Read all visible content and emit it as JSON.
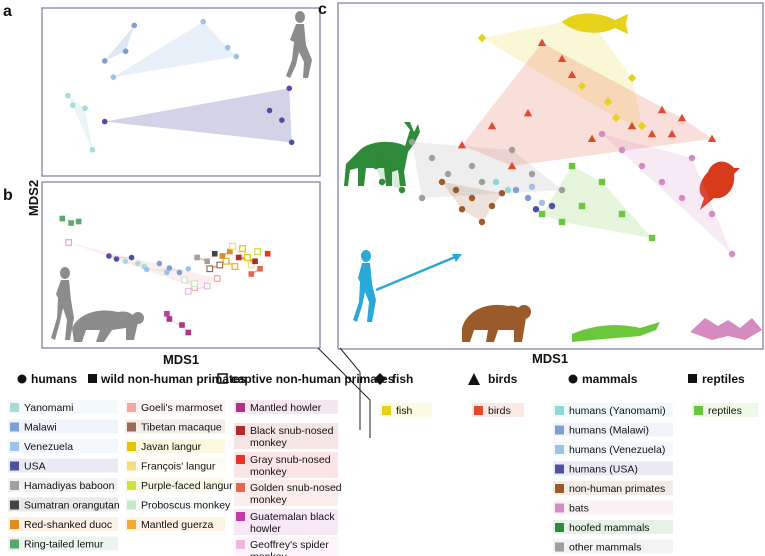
{
  "chart_data": [
    {
      "type": "scatter",
      "panel": "a",
      "title": "",
      "xlabel": "",
      "ylabel": "MDS2",
      "series": [
        {
          "name": "Yanomami",
          "color": "#a5dcd8",
          "points": [
            [
              -0.92,
              -0.05
            ],
            [
              -0.88,
              -0.18
            ],
            [
              -0.78,
              -0.22
            ],
            [
              -0.72,
              -0.78
            ]
          ]
        },
        {
          "name": "Malawi",
          "color": "#7d9fd4",
          "points": [
            [
              -0.38,
              0.9
            ],
            [
              -0.62,
              0.42
            ],
            [
              -0.45,
              0.55
            ]
          ]
        },
        {
          "name": "Venezuela",
          "color": "#9fc3e8",
          "points": [
            [
              -0.55,
              0.2
            ],
            [
              0.18,
              0.95
            ],
            [
              0.38,
              0.6
            ],
            [
              0.45,
              0.48
            ]
          ]
        },
        {
          "name": "USA",
          "color": "#4f4fa3",
          "points": [
            [
              -0.62,
              -0.4
            ],
            [
              0.72,
              -0.25
            ],
            [
              0.82,
              -0.38
            ],
            [
              0.88,
              0.05
            ],
            [
              0.9,
              -0.68
            ]
          ]
        }
      ]
    },
    {
      "type": "scatter",
      "panel": "b",
      "title": "",
      "xlabel": "MDS1",
      "ylabel": "MDS2",
      "series": [
        {
          "name": "Yanomami",
          "color": "#a5dcd8",
          "points": [
            [
              -0.45,
              0.05
            ],
            [
              -0.35,
              0.02
            ],
            [
              -0.3,
              -0.02
            ]
          ]
        },
        {
          "name": "Malawi",
          "color": "#7d9fd4",
          "points": [
            [
              -0.18,
              0.02
            ],
            [
              -0.1,
              -0.04
            ],
            [
              -0.02,
              -0.1
            ]
          ]
        },
        {
          "name": "Venezuela",
          "color": "#9fc3e8",
          "points": [
            [
              -0.28,
              -0.06
            ],
            [
              -0.12,
              -0.1
            ],
            [
              0.05,
              -0.05
            ]
          ]
        },
        {
          "name": "USA",
          "color": "#4f4fa3",
          "points": [
            [
              -0.58,
              0.12
            ],
            [
              -0.52,
              0.08
            ],
            [
              -0.4,
              0.1
            ]
          ]
        },
        {
          "name": "Hamadiyas baboon",
          "color": "#a6a09b",
          "points": [
            [
              0.12,
              0.1
            ],
            [
              0.2,
              0.05
            ]
          ]
        },
        {
          "name": "Sumatran orangutan",
          "color": "#444444",
          "points": [
            [
              0.26,
              0.15
            ]
          ]
        },
        {
          "name": "Red-shanked duoc",
          "color": "#e08a1f",
          "points": [
            [
              0.32,
              0.12
            ],
            [
              0.38,
              0.18
            ]
          ]
        },
        {
          "name": "Ring-tailed lemur",
          "color": "#5aa86a",
          "points": [
            [
              -0.95,
              0.62
            ],
            [
              -0.88,
              0.56
            ],
            [
              -0.82,
              0.58
            ]
          ]
        },
        {
          "name": "Goeli's marmoset",
          "color": "#f0a8a0",
          "points": [
            [
              -0.9,
              0.3
            ],
            [
              0.1,
              -0.3
            ],
            [
              0.28,
              -0.18
            ]
          ]
        },
        {
          "name": "Tibetan macaque",
          "color": "#9b6a55",
          "points": [
            [
              0.22,
              -0.05
            ],
            [
              0.3,
              0.0
            ]
          ]
        },
        {
          "name": "Javan langur",
          "color": "#e6c400",
          "points": [
            [
              0.48,
              0.22
            ],
            [
              0.52,
              0.1
            ]
          ]
        },
        {
          "name": "François' langur",
          "color": "#f3dc86",
          "points": [
            [
              0.4,
              0.25
            ],
            [
              0.55,
              0.0
            ]
          ]
        },
        {
          "name": "Purple-faced langur",
          "color": "#d2e03c",
          "points": [
            [
              0.6,
              0.18
            ]
          ]
        },
        {
          "name": "Proboscus monkey",
          "color": "#c8e8c8",
          "points": [
            [
              0.02,
              -0.2
            ],
            [
              0.1,
              -0.25
            ]
          ]
        },
        {
          "name": "Mantled guerza",
          "color": "#f0a830",
          "points": [
            [
              0.35,
              0.05
            ],
            [
              0.42,
              -0.02
            ]
          ]
        },
        {
          "name": "Mantled howler",
          "color": "#b0338a",
          "points": [
            [
              -0.1,
              -0.72
            ],
            [
              0.0,
              -0.8
            ],
            [
              0.05,
              -0.9
            ]
          ]
        },
        {
          "name": "Black snub-nosed monkey",
          "color": "#b22a2a",
          "points": [
            [
              0.45,
              0.1
            ],
            [
              0.58,
              0.05
            ]
          ]
        },
        {
          "name": "Gray snub-nosed monkey",
          "color": "#e8342a",
          "points": [
            [
              0.68,
              0.15
            ]
          ]
        },
        {
          "name": "Golden snub-nosed monkey",
          "color": "#e06a50",
          "points": [
            [
              0.55,
              -0.12
            ],
            [
              0.62,
              -0.05
            ]
          ]
        },
        {
          "name": "Guatemalan black howler",
          "color": "#c23ca8",
          "points": [
            [
              -0.12,
              -0.65
            ]
          ]
        },
        {
          "name": "Geoffrey's spider monkey",
          "color": "#f0b8e0",
          "points": [
            [
              0.05,
              -0.35
            ],
            [
              0.2,
              -0.28
            ]
          ]
        }
      ]
    },
    {
      "type": "scatter",
      "panel": "c",
      "title": "",
      "xlabel": "MDS1",
      "ylabel": "",
      "series": [
        {
          "name": "fish",
          "marker": "diamond",
          "color": "#e6d21a",
          "points": [
            [
              0.18,
              0.98
            ],
            [
              -0.35,
              0.85
            ],
            [
              0.4,
              0.6
            ],
            [
              0.28,
              0.45
            ],
            [
              0.32,
              0.35
            ],
            [
              0.45,
              0.3
            ],
            [
              0.15,
              0.55
            ]
          ]
        },
        {
          "name": "birds",
          "marker": "triangle",
          "color": "#e24a2c",
          "points": [
            [
              -0.05,
              0.82
            ],
            [
              0.05,
              0.72
            ],
            [
              0.1,
              0.62
            ],
            [
              -0.3,
              0.3
            ],
            [
              0.4,
              0.3
            ],
            [
              0.5,
              0.25
            ],
            [
              0.6,
              0.25
            ],
            [
              -0.12,
              0.38
            ],
            [
              0.2,
              0.22
            ],
            [
              -0.45,
              0.18
            ],
            [
              0.55,
              0.4
            ],
            [
              0.65,
              0.35
            ],
            [
              0.8,
              0.22
            ],
            [
              -0.2,
              0.05
            ]
          ]
        },
        {
          "name": "humans (Yanomami)",
          "marker": "circle",
          "color": "#8ed8d8",
          "points": [
            [
              -0.28,
              -0.05
            ],
            [
              -0.22,
              -0.1
            ]
          ]
        },
        {
          "name": "humans (Malawi)",
          "marker": "circle",
          "color": "#7d9fd4",
          "points": [
            [
              -0.18,
              -0.1
            ],
            [
              -0.12,
              -0.15
            ]
          ]
        },
        {
          "name": "humans (Venezuela)",
          "marker": "circle",
          "color": "#9fc3e8",
          "points": [
            [
              -0.1,
              -0.08
            ],
            [
              -0.05,
              -0.18
            ]
          ]
        },
        {
          "name": "humans (USA)",
          "marker": "circle",
          "color": "#4f4fa3",
          "points": [
            [
              -0.08,
              -0.22
            ],
            [
              0.0,
              -0.2
            ]
          ]
        },
        {
          "name": "non-human primates",
          "marker": "circle",
          "color": "#9b5a2a",
          "points": [
            [
              -0.55,
              -0.05
            ],
            [
              -0.48,
              -0.1
            ],
            [
              -0.4,
              -0.15
            ],
            [
              -0.3,
              -0.2
            ],
            [
              -0.35,
              -0.3
            ],
            [
              -0.25,
              -0.12
            ],
            [
              -0.45,
              -0.22
            ]
          ]
        },
        {
          "name": "bats",
          "marker": "circle",
          "color": "#d58ac0",
          "points": [
            [
              0.25,
              0.25
            ],
            [
              0.35,
              0.15
            ],
            [
              0.45,
              0.05
            ],
            [
              0.55,
              -0.05
            ],
            [
              0.65,
              -0.15
            ],
            [
              0.7,
              0.1
            ],
            [
              0.8,
              -0.25
            ],
            [
              0.9,
              -0.5
            ]
          ]
        },
        {
          "name": "hoofed mammals",
          "marker": "circle",
          "color": "#2f8a3a",
          "points": [
            [
              -0.92,
              0.15
            ],
            [
              -0.88,
              0.05
            ],
            [
              -0.85,
              -0.05
            ],
            [
              -0.8,
              0.1
            ],
            [
              -0.75,
              -0.1
            ]
          ]
        },
        {
          "name": "other mammals",
          "marker": "circle",
          "color": "#9e9e9e",
          "points": [
            [
              -0.7,
              0.2
            ],
            [
              -0.6,
              0.1
            ],
            [
              -0.52,
              0.0
            ],
            [
              -0.4,
              0.05
            ],
            [
              -0.35,
              -0.05
            ],
            [
              -0.2,
              0.15
            ],
            [
              -0.1,
              0.0
            ],
            [
              0.05,
              -0.1
            ],
            [
              -0.65,
              -0.15
            ]
          ]
        },
        {
          "name": "reptiles",
          "marker": "square",
          "color": "#6cc63c",
          "points": [
            [
              -0.05,
              -0.25
            ],
            [
              0.05,
              -0.3
            ],
            [
              0.15,
              -0.2
            ],
            [
              0.25,
              -0.05
            ],
            [
              0.35,
              -0.25
            ],
            [
              0.5,
              -0.4
            ],
            [
              0.1,
              0.05
            ]
          ]
        }
      ]
    }
  ],
  "panels": {
    "a": "a",
    "b": "b",
    "c": "c",
    "mds2": "MDS2",
    "mds1_b": "MDS1",
    "mds1_c": "MDS1"
  },
  "legend_left": {
    "headers": [
      "humans",
      "wild non-human primates",
      "captive non-human primates"
    ],
    "col1": [
      {
        "label": "Yanomami",
        "color": "#a5dcd8"
      },
      {
        "label": "Malawi",
        "color": "#7d9fd4"
      },
      {
        "label": "Venezuela",
        "color": "#9fc3e8"
      },
      {
        "label": "USA",
        "color": "#4f4fa3"
      },
      {
        "label": "Hamadiyas baboon",
        "color": "#a6a09b"
      },
      {
        "label": "Sumatran orangutan",
        "color": "#444444"
      },
      {
        "label": "Red-shanked duoc",
        "color": "#e08a1f"
      },
      {
        "label": "Ring-tailed lemur",
        "color": "#5aa86a"
      }
    ],
    "col2": [
      {
        "label": "Goeli's marmoset",
        "color": "#f0a8a0"
      },
      {
        "label": "Tibetan macaque",
        "color": "#9b6a55"
      },
      {
        "label": "Javan langur",
        "color": "#e6c400"
      },
      {
        "label": "François' langur",
        "color": "#f3dc86"
      },
      {
        "label": "Purple-faced langur",
        "color": "#d2e03c"
      },
      {
        "label": "Proboscus monkey",
        "color": "#c8e8c8"
      },
      {
        "label": "Mantled guerza",
        "color": "#f0a830"
      }
    ],
    "col3": [
      {
        "label": "Mantled howler",
        "color": "#b0338a"
      },
      {
        "label": "Black snub-nosed monkey",
        "color": "#b22a2a"
      },
      {
        "label": "Gray snub-nosed monkey",
        "color": "#e8342a"
      },
      {
        "label": "Golden snub-nosed monkey",
        "color": "#e06a50"
      },
      {
        "label": "Guatemalan black howler",
        "color": "#c23ca8"
      },
      {
        "label": "Geoffrey's spider monkey",
        "color": "#f0b8e0"
      }
    ]
  },
  "legend_right": {
    "headers": [
      "fish",
      "birds",
      "mammals",
      "reptiles"
    ],
    "fish": {
      "label": "fish",
      "color": "#e6d21a"
    },
    "birds": {
      "label": "birds",
      "color": "#e24a2c"
    },
    "mammals": [
      {
        "label": "humans (Yanomami)",
        "color": "#8ed8d8"
      },
      {
        "label": "humans (Malawi)",
        "color": "#7d9fd4"
      },
      {
        "label": "humans (Venezuela)",
        "color": "#9fc3e8"
      },
      {
        "label": "humans (USA)",
        "color": "#4f4fa3"
      },
      {
        "label": "non-human primates",
        "color": "#9b5a2a"
      },
      {
        "label": "bats",
        "color": "#d58ac0"
      },
      {
        "label": "hoofed mammals",
        "color": "#2f8a3a"
      },
      {
        "label": "other mammals",
        "color": "#9e9e9e"
      }
    ],
    "reptiles": {
      "label": "reptiles",
      "color": "#6cc63c"
    }
  }
}
